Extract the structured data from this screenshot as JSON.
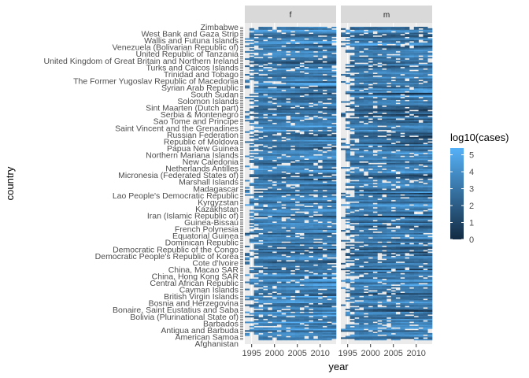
{
  "chart_data": {
    "type": "heatmap",
    "xlabel": "year",
    "ylabel": "country",
    "facets": [
      "f",
      "m"
    ],
    "x_tick_labels": [
      "1995",
      "2000",
      "2005",
      "2010"
    ],
    "x_ticks": [
      1995,
      2000,
      2005,
      2010
    ],
    "x_range": [
      1993.5,
      2013.5
    ],
    "y_labels_visible": [
      "Zimbabwe",
      "West Bank and Gaza Strip",
      "Wallis and Futuna Islands",
      "Venezuela (Bolivarian Republic of)",
      "United Republic of Tanzania",
      "United Kingdom of Great Britain and Northern Ireland",
      "Turks and Caicos Islands",
      "Trinidad and Tobago",
      "The Former Yugoslav Republic of Macedonia",
      "Syrian Arab Republic",
      "South Sudan",
      "Solomon Islands",
      "Sint Maarten (Dutch part)",
      "Serbia & Montenegro",
      "Sao Tome and Principe",
      "Saint Vincent and the Grenadines",
      "Russian Federation",
      "Republic of Moldova",
      "Papua New Guinea",
      "Northern Mariana Islands",
      "New Caledonia",
      "Netherlands Antilles",
      "Micronesia (Federated States of)",
      "Marshall Islands",
      "Madagascar",
      "Lao People's Democratic Republic",
      "Kyrgyzstan",
      "Kazakhstan",
      "Iran (Islamic Republic of)",
      "Guinea-Bissau",
      "French Polynesia",
      "Equatorial Guinea",
      "Dominican Republic",
      "Democratic Republic of the Congo",
      "Democratic People's Republic of Korea",
      "Cote d'Ivoire",
      "China, Macao SAR",
      "China, Hong Kong SAR",
      "Central African Republic",
      "Cayman Islands",
      "British Virgin Islands",
      "Bosnia and Herzegovina",
      "Bonaire, Saint Eustatius and Saba",
      "Bolivia (Plurinational State of)",
      "Barbados",
      "Antigua and Barbuda",
      "American Samoa",
      "Afghanistan"
    ],
    "n_countries": 219,
    "legend": {
      "title": "log10(cases)",
      "breaks": [
        0,
        1,
        2,
        3,
        4,
        5
      ],
      "labels": [
        "0",
        "1",
        "2",
        "3",
        "4",
        "5"
      ],
      "range": [
        0,
        5.4
      ],
      "low_color": "#132b43",
      "high_color": "#56b1f7",
      "placement": "right"
    },
    "grid": true,
    "panel_background": "#ebebeb",
    "strip_background": "#d9d9d9"
  }
}
